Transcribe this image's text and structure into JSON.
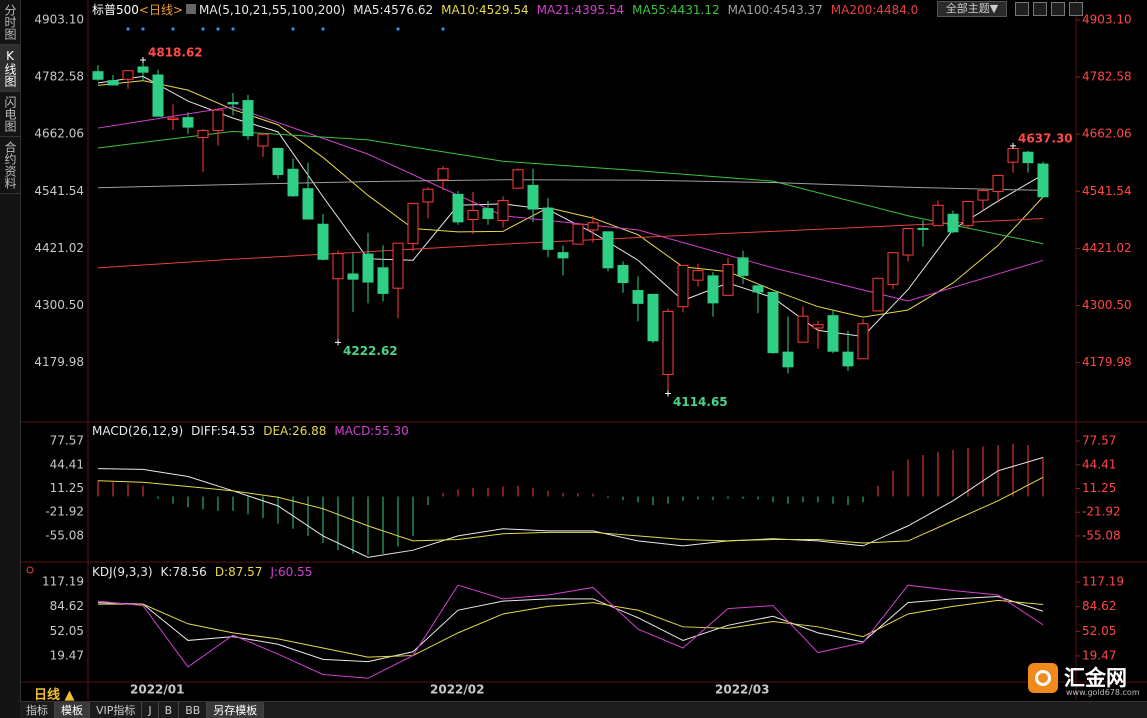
{
  "sidebar": [
    "分时图",
    "K线图",
    "闪电图",
    "合约资料"
  ],
  "toolbar": "全部主题▼",
  "period_label": "日线 ▲",
  "bottom_tabs": [
    "指标",
    "模板",
    "VIP指标",
    "J",
    "B",
    "BB",
    "另存模板"
  ],
  "logo": {
    "name": "汇金网",
    "url": "www.gold678.com"
  },
  "chart_data": [
    {
      "type": "candlestick",
      "title": "标普500",
      "period": "<日线>",
      "indicator": "MA(5,10,21,55,100,200)",
      "up_color": "#ff3b3b",
      "down_color": "#2fcf85",
      "categories": [
        null,
        null,
        "2022/01",
        null,
        null,
        null,
        null,
        null,
        null,
        null,
        null,
        null,
        null,
        null,
        null,
        null,
        null,
        null,
        null,
        null,
        null,
        null,
        "2022/02",
        null,
        null,
        null,
        null,
        null,
        null,
        null,
        null,
        null,
        null,
        null,
        null,
        null,
        null,
        null,
        null,
        null,
        null,
        "2022/03",
        null,
        null,
        null,
        null,
        null,
        null,
        null,
        null,
        null,
        null,
        null,
        null,
        null,
        null,
        null,
        null,
        null,
        null,
        null,
        null,
        null,
        null
      ],
      "open": [
        4794,
        4775,
        4778,
        4804,
        4787,
        4693,
        4697,
        4655,
        4670,
        4729,
        4733,
        4637,
        4632,
        4588,
        4547,
        4472,
        4357,
        4367,
        4409,
        4380,
        4337,
        4431,
        4519,
        4566,
        4535,
        4482,
        4505,
        4480,
        4548,
        4554,
        4506,
        4412,
        4430,
        4460,
        4456,
        4385,
        4332,
        4324,
        4155,
        4298,
        4354,
        4363,
        4322,
        4401,
        4342,
        4328,
        4202,
        4223,
        4253,
        4279,
        4202,
        4188,
        4289,
        4345,
        4407,
        4463,
        4469,
        4493,
        4469,
        4523,
        4541,
        4603,
        4624,
        4599
      ],
      "high": [
        4808,
        4787,
        4797,
        4818.62,
        4798,
        4725,
        4708,
        4673,
        4714,
        4749,
        4745,
        4665,
        4632,
        4611,
        4602,
        4494,
        4417,
        4411,
        4454,
        4428,
        4432,
        4516,
        4550,
        4595,
        4542,
        4540,
        4521,
        4531,
        4590,
        4589,
        4527,
        4427,
        4473,
        4490,
        4456,
        4394,
        4362,
        4324,
        4294,
        4385,
        4388,
        4371,
        4401,
        4416,
        4343,
        4329,
        4277,
        4299,
        4268,
        4292,
        4247,
        4272,
        4358,
        4412,
        4465,
        4481,
        4522,
        4501,
        4520,
        4546,
        4575,
        4637.3,
        4627,
        4604
      ],
      "low": [
        4775,
        4766,
        4758,
        4774,
        4699,
        4671,
        4663,
        4582,
        4638,
        4702,
        4650,
        4614,
        4568,
        4530,
        4483,
        4396,
        4222.62,
        4287,
        4305,
        4309,
        4273,
        4415,
        4484,
        4544,
        4471,
        4451,
        4471,
        4465,
        4548,
        4477,
        4402,
        4364,
        4430,
        4433,
        4373,
        4327,
        4267,
        4221,
        4114.65,
        4286,
        4340,
        4277,
        4322,
        4346,
        4284,
        4199,
        4157,
        4223,
        4209,
        4200,
        4162,
        4188,
        4288,
        4335,
        4394,
        4425,
        4469,
        4453,
        4465,
        4501,
        4517,
        4581,
        4581,
        4530
      ],
      "close": [
        4778,
        4766,
        4796,
        4793,
        4700,
        4696,
        4677,
        4670,
        4713,
        4726,
        4659,
        4662,
        4577,
        4532,
        4483,
        4398,
        4410,
        4356,
        4350,
        4326,
        4432,
        4516,
        4546,
        4589,
        4477,
        4501,
        4484,
        4522,
        4587,
        4504,
        4419,
        4401,
        4472,
        4475,
        4380,
        4349,
        4305,
        4226,
        4288,
        4385,
        4374,
        4306,
        4387,
        4364,
        4329,
        4201,
        4171,
        4278,
        4260,
        4204,
        4173,
        4262,
        4358,
        4412,
        4463,
        4461,
        4512,
        4456,
        4520,
        4543,
        4575,
        4632,
        4602,
        4530
      ],
      "series": [
        {
          "name": "MA5:4576.62",
          "color": "#e8e8e8",
          "x": [
            0,
            3,
            6,
            9,
            12,
            15,
            18,
            21,
            24,
            27,
            30,
            33,
            36,
            39,
            42,
            45,
            48,
            51,
            54,
            57,
            60,
            63
          ],
          "values": [
            4770,
            4784,
            4732,
            4696,
            4667,
            4530,
            4399,
            4396,
            4512,
            4515,
            4503,
            4454,
            4396,
            4311,
            4348,
            4317,
            4248,
            4235,
            4334,
            4461,
            4521,
            4576.62
          ]
        },
        {
          "name": "MA10:4529.54",
          "color": "#e8d84a",
          "x": [
            0,
            3,
            6,
            9,
            12,
            15,
            18,
            21,
            24,
            27,
            30,
            33,
            36,
            39,
            42,
            45,
            48,
            51,
            54,
            57,
            60,
            63
          ],
          "values": [
            4765,
            4775,
            4755,
            4714,
            4682,
            4613,
            4533,
            4463,
            4456,
            4457,
            4507,
            4485,
            4450,
            4382,
            4372,
            4333,
            4298,
            4276,
            4291,
            4348,
            4427,
            4529.54
          ]
        },
        {
          "name": "MA21:4395.54",
          "color": "#d040d0",
          "x": [
            0,
            9,
            18,
            27,
            36,
            45,
            54,
            63
          ],
          "values": [
            4675,
            4720,
            4620,
            4490,
            4460,
            4380,
            4310,
            4395.54
          ]
        },
        {
          "name": "MA55:4431.12",
          "color": "#3ac43a",
          "x": [
            0,
            9,
            18,
            27,
            36,
            45,
            54,
            63
          ],
          "values": [
            4633,
            4668,
            4650,
            4605,
            4585,
            4563,
            4490,
            4431.12
          ]
        },
        {
          "name": "MA100:4543.37",
          "color": "#a0a0a0",
          "x": [
            0,
            9,
            18,
            27,
            36,
            45,
            54,
            63
          ],
          "values": [
            4549,
            4556,
            4562,
            4566,
            4565,
            4560,
            4550,
            4543.37
          ]
        },
        {
          "name": "MA200:4484.0",
          "color": "#e84040",
          "x": [
            0,
            9,
            18,
            27,
            36,
            45,
            54,
            63
          ],
          "values": [
            4380,
            4398,
            4414,
            4430,
            4444,
            4457,
            4470,
            4484
          ]
        }
      ],
      "annotations": [
        {
          "x": 3,
          "y": 4818.62,
          "label": "4818.62"
        },
        {
          "x": 16,
          "y": 4222.62,
          "label": "4222.62"
        },
        {
          "x": 38,
          "y": 4114.65,
          "label": "4114.65"
        },
        {
          "x": 61,
          "y": 4637.3,
          "label": "4637.30"
        }
      ],
      "signals": [
        2,
        3,
        5,
        7,
        8,
        9,
        13,
        15,
        20,
        23
      ],
      "signal_color": "#3a8ee6",
      "ylim": [
        4058.78,
        4903.1
      ],
      "yticks": [
        {
          "value": 4903.1,
          "label": "4903.10"
        },
        4782.58,
        4662.06,
        4541.54,
        4421.02,
        {
          "value": 4300.5,
          "label": "4300.50"
        },
        4179.98
      ]
    },
    {
      "type": "macd",
      "title": "MACD(26,12,9)",
      "histogram": {
        "name": "MACD:55.30",
        "color": "#d040d0",
        "up_color": "#ff3b3b",
        "down_color": "#2fcf85",
        "values": [
          22,
          20,
          18,
          15,
          -3,
          -10,
          -15,
          -18,
          -20,
          -20,
          -25,
          -30,
          -38,
          -45,
          -55,
          -65,
          -75,
          -80,
          -82,
          -80,
          -70,
          -55,
          -12,
          5,
          10,
          12,
          12,
          14,
          15,
          12,
          8,
          5,
          5,
          4,
          -2,
          -5,
          -8,
          -12,
          -10,
          -6,
          -4,
          -5,
          -3,
          -3,
          -4,
          -8,
          -10,
          -8,
          -8,
          -10,
          -12,
          -8,
          15,
          36,
          52,
          58,
          62,
          65,
          68,
          70,
          72,
          74,
          72,
          55.3
        ]
      },
      "series": [
        {
          "name": "DIFF:54.53",
          "color": "#e8e8e8",
          "x": [
            0,
            3,
            6,
            9,
            12,
            15,
            18,
            21,
            24,
            27,
            30,
            33,
            36,
            39,
            42,
            45,
            48,
            51,
            54,
            57,
            60,
            63
          ],
          "values": [
            39,
            38,
            28,
            8,
            -13,
            -55,
            -85,
            -75,
            -55,
            -45,
            -48,
            -48,
            -62,
            -69,
            -62,
            -59,
            -62,
            -69,
            -41,
            -6,
            36,
            54.53
          ]
        },
        {
          "name": "DEA:26.88",
          "color": "#e8d84a",
          "x": [
            0,
            3,
            6,
            9,
            12,
            15,
            18,
            21,
            24,
            27,
            30,
            33,
            36,
            39,
            42,
            45,
            48,
            51,
            54,
            57,
            60,
            63
          ],
          "values": [
            22,
            20,
            14,
            8,
            -1,
            -17,
            -41,
            -62,
            -60,
            -52,
            -50,
            -50,
            -55,
            -60,
            -62,
            -60,
            -60,
            -65,
            -62,
            -34,
            -6,
            26.88
          ]
        }
      ],
      "ylim": [
        -88.7,
        100
      ],
      "yticks": [
        77.57,
        44.41,
        11.25,
        -21.92,
        -55.08
      ]
    },
    {
      "type": "line",
      "title": "KDJ(9,3,3)",
      "series": [
        {
          "name": "K:78.56",
          "color": "#e8e8e8",
          "x": [
            0,
            3,
            6,
            9,
            12,
            15,
            18,
            21,
            24,
            27,
            30,
            33,
            36,
            39,
            42,
            45,
            48,
            51,
            54,
            57,
            60,
            63
          ],
          "values": [
            90,
            88,
            40,
            45,
            35,
            15,
            12,
            25,
            80,
            92,
            95,
            95,
            70,
            40,
            60,
            72,
            50,
            38,
            90,
            95,
            98,
            78.56
          ]
        },
        {
          "name": "D:87.57",
          "color": "#e8d84a",
          "x": [
            0,
            3,
            6,
            9,
            12,
            15,
            18,
            21,
            24,
            27,
            30,
            33,
            36,
            39,
            42,
            45,
            48,
            51,
            54,
            57,
            60,
            63
          ],
          "values": [
            88,
            88,
            62,
            50,
            42,
            30,
            18,
            20,
            50,
            75,
            85,
            90,
            80,
            58,
            56,
            65,
            58,
            45,
            75,
            85,
            93,
            87.57
          ]
        },
        {
          "name": "J:60.55",
          "color": "#d040d0",
          "x": [
            0,
            3,
            6,
            9,
            12,
            15,
            18,
            21,
            24,
            27,
            30,
            33,
            36,
            39,
            42,
            45,
            48,
            51,
            54,
            57,
            60,
            63
          ],
          "values": [
            92,
            86,
            5,
            47,
            22,
            -5,
            -10,
            20,
            113,
            95,
            100,
            110,
            55,
            30,
            82,
            86,
            24,
            37,
            113,
            106,
            100,
            60.55
          ]
        }
      ],
      "ylim": [
        -12.3,
        139.7
      ],
      "yticks": [
        117.19,
        84.62,
        52.05,
        19.47
      ]
    }
  ]
}
